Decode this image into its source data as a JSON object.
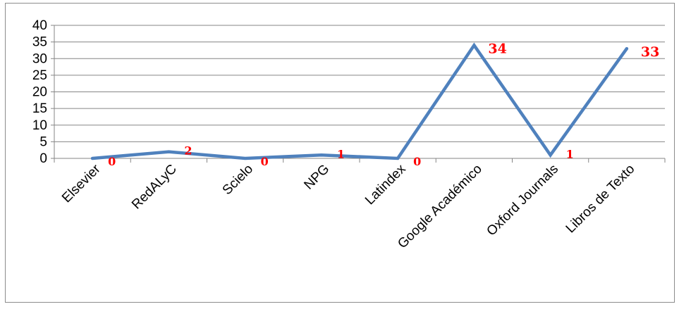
{
  "chart_data": {
    "type": "line",
    "title": "",
    "xlabel": "",
    "ylabel": "",
    "categories": [
      "Elsevier",
      "RedALyC",
      "Scielo",
      "NPG",
      "Latindex",
      "Google Académico",
      "Oxford Journals",
      "Libros de Texto"
    ],
    "series": [
      {
        "values": [
          0,
          2,
          0,
          1,
          0,
          34,
          1,
          33
        ],
        "color": "#4f81bd"
      }
    ],
    "data_labels": [
      "0",
      "2",
      "0",
      "1",
      "0",
      "34",
      "1",
      "33"
    ],
    "data_label_color": "#ff0000",
    "ylim": [
      0,
      40
    ],
    "yticks": [
      "0",
      "5",
      "10",
      "15",
      "20",
      "25",
      "30",
      "35",
      "40"
    ],
    "grid": true,
    "legend": "none"
  }
}
